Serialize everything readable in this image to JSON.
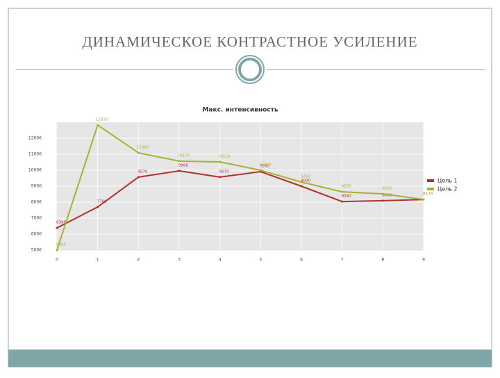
{
  "slide_title": "ДИНАМИЧЕСКОЕ КОНТРАСТНОЕ УСИЛЕНИЕ",
  "chart_data": {
    "type": "line",
    "title": "Макс. интенсивность",
    "categories": [
      "0",
      "1",
      "2",
      "3",
      "4",
      "5",
      "6",
      "7",
      "8",
      "9"
    ],
    "series": [
      {
        "name": "Цель 1",
        "color": "#b03030",
        "values": [
          6390,
          7700,
          9570,
          9960,
          9570,
          9910,
          9000,
          8040,
          8090,
          8170
        ]
      },
      {
        "name": "Цель 2",
        "color": "#a8b030",
        "values": [
          5000,
          12830,
          11090,
          10570,
          10520,
          10000,
          9260,
          8650,
          8520,
          8170
        ]
      }
    ],
    "ylim": [
      5000,
      13000
    ],
    "yticks": [
      5000,
      6000,
      7000,
      8000,
      9000,
      10000,
      11000,
      12000
    ],
    "grid": true,
    "legend": "right"
  }
}
